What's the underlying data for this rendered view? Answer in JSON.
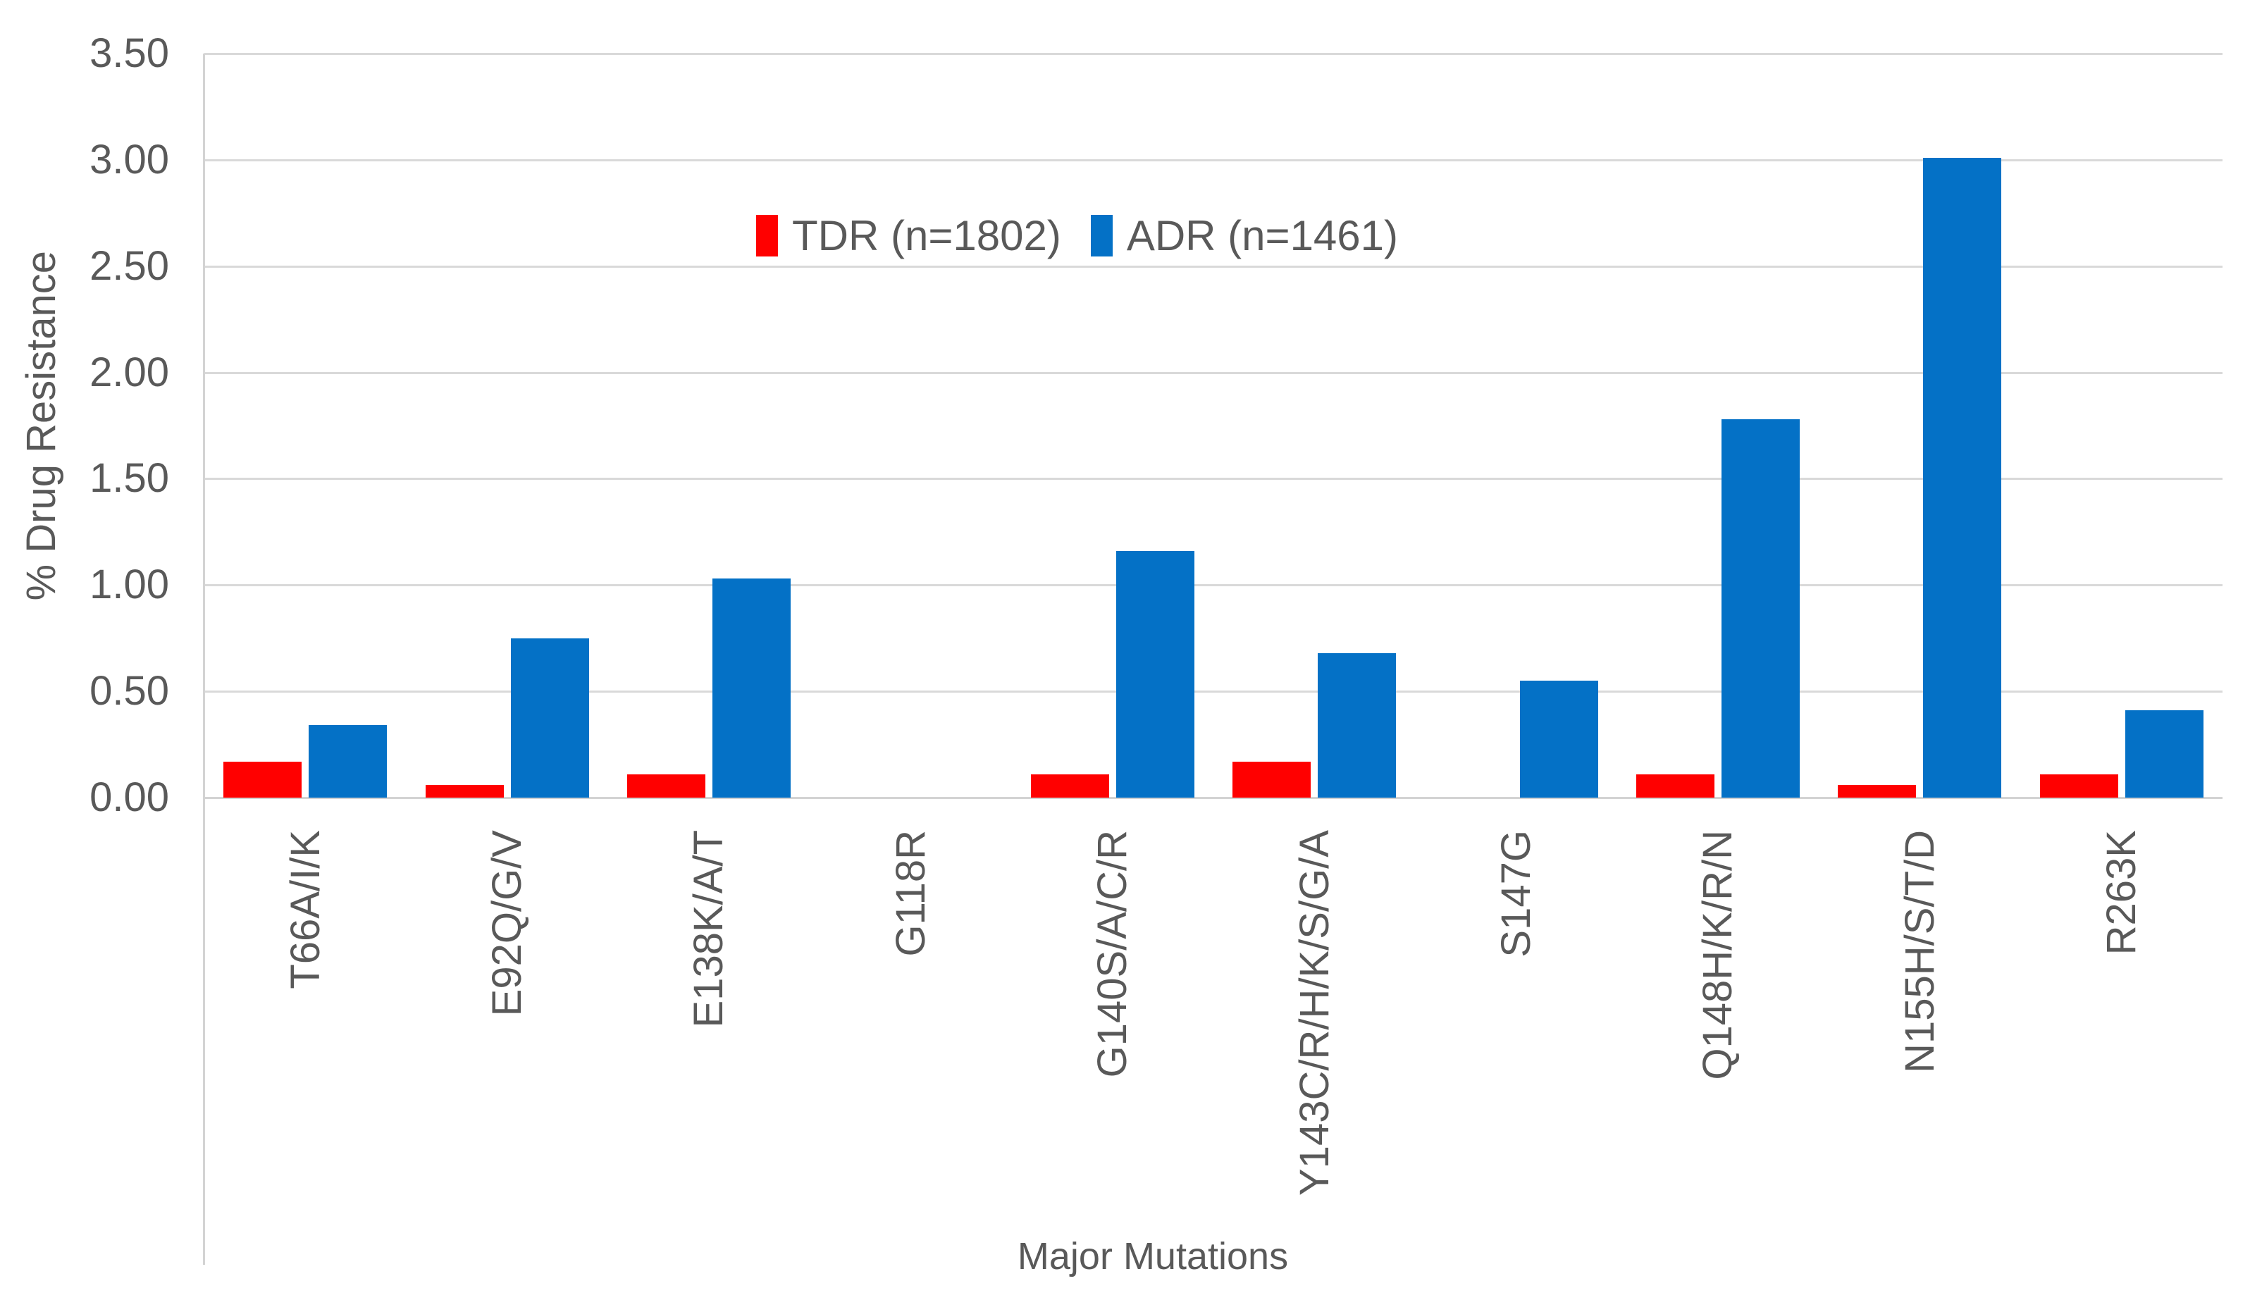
{
  "chart_data": {
    "type": "bar",
    "title": "",
    "xlabel": "Major Mutations",
    "ylabel": "% Drug Resistance",
    "categories": [
      "T66A/I/K",
      "E92Q/G/V",
      "E138K/A/T",
      "G118R",
      "G140S/A/C/R",
      "Y143C/R/H/K/S/G/A",
      "S147G",
      "Q148H/K/R/N",
      "N155H/S/T/D",
      "R263K"
    ],
    "series": [
      {
        "name": "TDR (n=1802)",
        "color": "#FF0000",
        "values": [
          0.17,
          0.06,
          0.11,
          0,
          0.11,
          0.17,
          0,
          0.11,
          0.06,
          0.11
        ]
      },
      {
        "name": "ADR (n=1461)",
        "color": "#0471C6",
        "values": [
          0.34,
          0.75,
          1.03,
          0,
          1.16,
          0.68,
          0.55,
          1.78,
          3.01,
          0.41
        ]
      }
    ],
    "ylim": [
      0,
      3.5
    ],
    "ytick_step": 0.5,
    "ytick_labels": [
      "0.00",
      "0.50",
      "1.00",
      "1.50",
      "2.00",
      "2.50",
      "3.00",
      "3.50"
    ],
    "grid": true,
    "legend_position": "inside-top-center"
  },
  "colors": {
    "text": "#595959",
    "gridline": "#D9D9D9",
    "axis_line": "#D3D3D3",
    "background": "#FFFFFF",
    "tdr": "#FF0000",
    "adr": "#0471C6"
  }
}
